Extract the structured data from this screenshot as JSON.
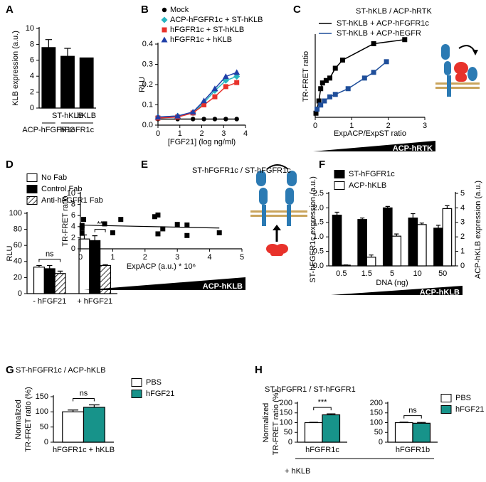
{
  "chart_data": [
    {
      "panel": "A",
      "type": "bar",
      "ylabel": "KLB expression (a.u.)",
      "ylim": [
        0,
        10
      ],
      "yticks": [
        0,
        2,
        4,
        6,
        8,
        10
      ],
      "categories": [
        null,
        "ST-hKLB",
        "hKLB"
      ],
      "group_labels": [
        "ACP-hFGFR1c",
        "hFGFR1c"
      ],
      "series": [
        {
          "color": "#000000",
          "values": [
            7.6,
            6.5,
            6.3
          ],
          "errors": [
            1.0,
            1.0,
            null
          ]
        }
      ]
    },
    {
      "panel": "B",
      "type": "line",
      "ylabel": "RLU",
      "xlabel": "[FGF21] (log ng/ml)",
      "x": [
        0,
        0.9,
        1.6,
        2.1,
        2.6,
        3.1,
        3.6
      ],
      "xlim": [
        0,
        4
      ],
      "xticks": [
        0,
        1,
        2,
        3,
        4
      ],
      "ylim": [
        0,
        0.4
      ],
      "yticks": [
        {
          "value": 0,
          "label": "0.0"
        },
        0.1,
        0.2,
        0.3,
        0.4
      ],
      "series": [
        {
          "name": "Mock",
          "color": "#000000",
          "marker": "circle",
          "values": [
            0.03,
            0.03,
            0.03,
            0.03,
            0.03,
            0.03,
            0.03
          ]
        },
        {
          "name": "ACP-hFGFR1c + ST-hKLB",
          "color": "#26b5c0",
          "marker": "diamond",
          "values": [
            0.04,
            0.045,
            0.06,
            0.11,
            0.17,
            0.22,
            0.24
          ]
        },
        {
          "name": "hFGFR1c + ST-hKLB",
          "color": "#e8322b",
          "marker": "square",
          "values": [
            0.035,
            0.04,
            0.06,
            0.1,
            0.14,
            0.19,
            0.21
          ]
        },
        {
          "name": "hFGFR1c + hKLB",
          "color": "#1f3fa8",
          "marker": "triangle",
          "values": [
            0.04,
            0.045,
            0.065,
            0.12,
            0.18,
            0.24,
            0.26
          ]
        }
      ]
    },
    {
      "panel": "C",
      "type": "scatter",
      "title": "ST-hKLB / ACP-hRTK",
      "ylabel": "TR-FRET ratio",
      "xlabel": "ExpACP/ExpST ratio",
      "xlim": [
        0,
        3
      ],
      "xticks": [
        0,
        1,
        2,
        3
      ],
      "ylim": [
        0,
        1
      ],
      "ramp_label": "ACP-hRTK",
      "series": [
        {
          "name": "ST-hKLB + ACP-hFGFR1c",
          "color": "#000000",
          "x": [
            0.02,
            0.1,
            0.15,
            0.2,
            0.3,
            0.4,
            0.55,
            0.75,
            1.6,
            2.45
          ],
          "values": [
            0.05,
            0.2,
            0.35,
            0.42,
            0.45,
            0.48,
            0.6,
            0.7,
            0.9,
            0.95
          ]
        },
        {
          "name": "ST-hKLB + ACP-hEGFR",
          "color": "#1f4e9a",
          "x": [
            0.05,
            0.15,
            0.25,
            0.4,
            0.55,
            0.9,
            1.35,
            1.6,
            1.95
          ],
          "values": [
            0.1,
            0.15,
            0.2,
            0.25,
            0.28,
            0.35,
            0.48,
            0.55,
            0.68
          ]
        }
      ]
    },
    {
      "panel": "D",
      "type": "bar",
      "ylabel": "RLU",
      "ylim": [
        0,
        100
      ],
      "yticks": [
        0,
        20,
        40,
        60,
        80,
        100
      ],
      "categories": [
        "- hFGF21",
        "+ hFGF21"
      ],
      "annotations": [
        "ns",
        "**"
      ],
      "series": [
        {
          "name": "No Fab",
          "color": "#ffffff",
          "values": [
            33,
            68
          ],
          "errors": [
            2,
            5
          ]
        },
        {
          "name": "Control Fab",
          "color": "#000000",
          "values": [
            31,
            66
          ],
          "errors": [
            4,
            6
          ]
        },
        {
          "name": "Anti-hFGFR1 Fab",
          "color": "#ffffff",
          "pattern": "hatch",
          "values": [
            25,
            35
          ],
          "errors": [
            3,
            1
          ]
        }
      ]
    },
    {
      "panel": "E",
      "type": "scatter",
      "title": "ST-hFGFR1c / ST-hFGFR1c",
      "ylabel": "TR-FRET ratio",
      "xlabel": "ExpACP (a.u.) * 10⁶",
      "xlim": [
        0,
        5
      ],
      "xticks": [
        0,
        1,
        2,
        3,
        4,
        5
      ],
      "ylim": [
        0,
        10
      ],
      "yticks": [
        0,
        2,
        4,
        6,
        8,
        10
      ],
      "fit": true,
      "ramp_label": "ACP-hKLB",
      "series": [
        {
          "color": "#000000",
          "x": [
            0.1,
            0.05,
            0.05,
            0.05,
            0.75,
            1.0,
            1.25,
            2.3,
            2.4,
            2.4,
            2.55,
            3.0,
            3.3,
            3.3,
            4.3
          ],
          "values": [
            5.3,
            4.2,
            3.7,
            2.8,
            4.5,
            2.9,
            5.3,
            5.8,
            6.1,
            2.7,
            3.6,
            4.4,
            4.3,
            2.4,
            2.9
          ]
        }
      ]
    },
    {
      "panel": "F",
      "type": "bar",
      "ylabel": "ST-hFGFR1c expression (a.u.)",
      "y2label": "ACP-hKLB expression (a.u.)",
      "xlabel": "DNA (ng)",
      "ylim": [
        0,
        2.5
      ],
      "yticks": [
        {
          "value": 0,
          "label": "0.0"
        },
        0.5,
        {
          "value": 1,
          "label": "1.0"
        },
        1.5,
        {
          "value": 2,
          "label": "2.0"
        },
        2.5
      ],
      "y2lim": [
        0,
        5
      ],
      "y2ticks": [
        0,
        1,
        2,
        3,
        4,
        5
      ],
      "ramp_label": "ACP-hKLB",
      "categories": [
        "0.5",
        "1.5",
        "5",
        "10",
        "50"
      ],
      "series": [
        {
          "name": "ST-hFGFR1c",
          "color": "#000000",
          "values": [
            1.75,
            1.6,
            2.0,
            1.65,
            1.3
          ],
          "errors": [
            0.1,
            0.05,
            0.05,
            0.15,
            0.1
          ]
        },
        {
          "name": "ACP-hKLB",
          "color": "#ffffff",
          "axis": "y2",
          "values": [
            0.05,
            0.6,
            2.05,
            2.85,
            3.95
          ],
          "errors": [
            0.02,
            0.15,
            0.15,
            0.1,
            0.2
          ]
        }
      ]
    },
    {
      "panel": "G",
      "type": "bar",
      "title": "ST-hFGFR1c / ACP-hKLB",
      "ylabel": [
        "Normalized",
        "TR-FRET ratio (%)"
      ],
      "ylim": [
        0,
        150
      ],
      "yticks": [
        0,
        50,
        100,
        150
      ],
      "categories": [
        "hFGFR1c + hKLB"
      ],
      "annotations": [
        "ns"
      ],
      "series": [
        {
          "name": "PBS",
          "color": "#ffffff",
          "values": [
            100
          ],
          "errors": [
            6
          ]
        },
        {
          "name": "hFGF21",
          "color": "#17938a",
          "values": [
            115
          ],
          "errors": [
            8
          ]
        }
      ]
    },
    {
      "panel": "H",
      "type": "bar",
      "title": "ST-hFGFR1 / ST-hFGFR1",
      "ylabel": [
        "Normalized",
        "TR-FRET ratio (%)"
      ],
      "footnote": "+ hKLB",
      "ylim": [
        0,
        200
      ],
      "yticks": [
        0,
        50,
        100,
        150,
        200
      ],
      "categories": [
        "hFGFR1c"
      ],
      "annotations": [
        "***"
      ],
      "series": [
        {
          "color": "#ffffff",
          "values": [
            100
          ],
          "errors": [
            2
          ]
        },
        {
          "color": "#17938a",
          "values": [
            140
          ],
          "errors": [
            5
          ]
        }
      ]
    },
    {
      "type": "bar",
      "ylim": [
        0,
        200
      ],
      "yticks": [
        0,
        50,
        100,
        150,
        200
      ],
      "categories": [
        "hFGFR1b"
      ],
      "annotations": [
        "ns"
      ],
      "series": [
        {
          "name": "PBS",
          "color": "#ffffff",
          "values": [
            100
          ],
          "errors": [
            3
          ]
        },
        {
          "name": "hFGF21",
          "color": "#17938a",
          "values": [
            97
          ],
          "errors": [
            4
          ]
        }
      ]
    }
  ]
}
